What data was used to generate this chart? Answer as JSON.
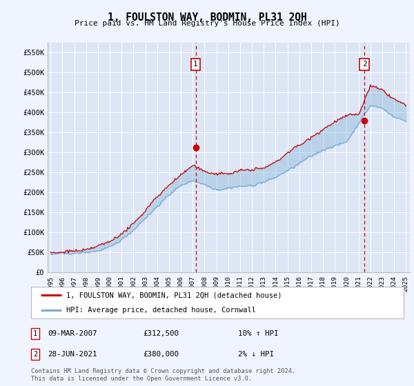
{
  "title": "1, FOULSTON WAY, BODMIN, PL31 2QH",
  "subtitle": "Price paid vs. HM Land Registry's House Price Index (HPI)",
  "background_color": "#f0f4ff",
  "plot_bg_color": "#dce6f5",
  "red_color": "#cc0000",
  "blue_color": "#7aadd4",
  "sale1_date_str": "09-MAR-2007",
  "sale1_price": 312500,
  "sale1_hpi_pct": "10% ↑ HPI",
  "sale2_date_str": "28-JUN-2021",
  "sale2_price": 380000,
  "sale2_hpi_pct": "2% ↓ HPI",
  "legend_line1": "1, FOULSTON WAY, BODMIN, PL31 2QH (detached house)",
  "legend_line2": "HPI: Average price, detached house, Cornwall",
  "footer1": "Contains HM Land Registry data © Crown copyright and database right 2024.",
  "footer2": "This data is licensed under the Open Government Licence v3.0.",
  "yticks": [
    0,
    50000,
    100000,
    150000,
    200000,
    250000,
    300000,
    350000,
    400000,
    450000,
    500000,
    550000
  ],
  "ytick_labels": [
    "£0",
    "£50K",
    "£100K",
    "£150K",
    "£200K",
    "£250K",
    "£300K",
    "£350K",
    "£400K",
    "£450K",
    "£500K",
    "£550K"
  ],
  "year_labels": [
    "1995",
    "1996",
    "1997",
    "1998",
    "1999",
    "2000",
    "2001",
    "2002",
    "2003",
    "2004",
    "2005",
    "2006",
    "2007",
    "2008",
    "2009",
    "2010",
    "2011",
    "2012",
    "2013",
    "2014",
    "2015",
    "2016",
    "2017",
    "2018",
    "2019",
    "2020",
    "2021",
    "2022",
    "2023",
    "2024",
    "2025"
  ],
  "n_months": 361,
  "start_year": 1995,
  "sale1_month_idx": 147,
  "sale2_month_idx": 318,
  "hpi_base": [
    44000,
    46000,
    49000,
    53000,
    58000,
    68000,
    85000,
    110000,
    140000,
    170000,
    198000,
    222000,
    235000,
    225000,
    210000,
    213000,
    218000,
    220000,
    225000,
    238000,
    255000,
    272000,
    292000,
    308000,
    318000,
    328000,
    372000,
    415000,
    408000,
    388000,
    378000
  ],
  "red_base": [
    47000,
    50000,
    54000,
    58000,
    64000,
    75000,
    93000,
    119000,
    151000,
    184000,
    213000,
    238000,
    260000,
    244000,
    233000,
    230000,
    235000,
    237000,
    242000,
    258000,
    278000,
    297000,
    320000,
    340000,
    355000,
    368000,
    370000,
    440000,
    428000,
    408000,
    393000
  ]
}
